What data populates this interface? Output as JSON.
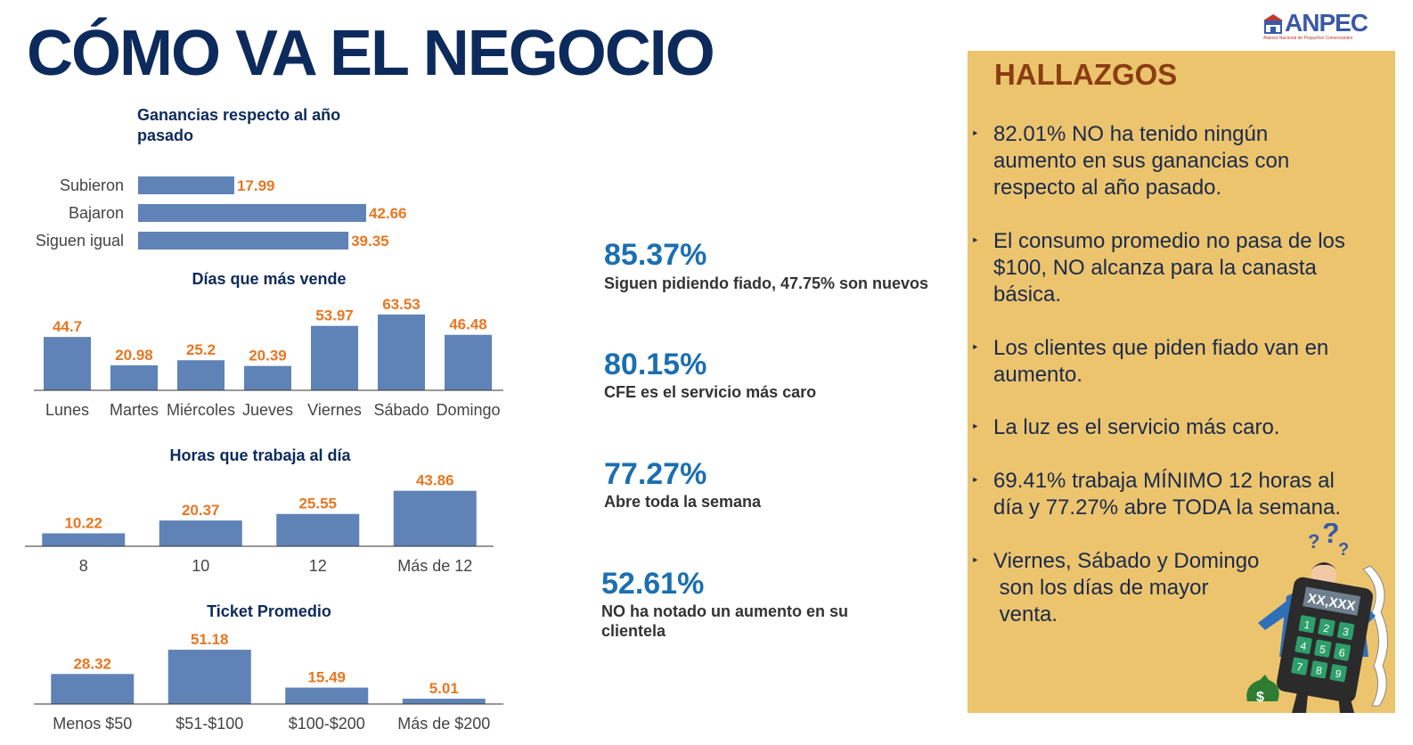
{
  "title": "CÓMO VA EL NEGOCIO",
  "logo": {
    "text": "ANPEC",
    "subtitle": "Alianza Nacional de Pequeños Comerciantes"
  },
  "colors": {
    "bar": "#5f83b6",
    "value_label": "#e87722",
    "title": "#0d2a5c",
    "stat": "#1c6fb0",
    "panel_bg": "#ecc46e",
    "panel_title": "#8b3d12"
  },
  "chart_data": [
    {
      "type": "bar",
      "orientation": "horizontal",
      "title_lines": [
        "Ganancias respecto al año",
        "pasado"
      ],
      "categories": [
        "Subieron",
        "Bajaron",
        "Siguen igual"
      ],
      "values": [
        17.99,
        42.66,
        39.35
      ],
      "value_labels": [
        "17.99",
        "42.66",
        "39.35"
      ]
    },
    {
      "type": "bar",
      "title": "Días que más vende",
      "categories": [
        "Lunes",
        "Martes",
        "Miércoles",
        "Jueves",
        "Viernes",
        "Sábado",
        "Domingo"
      ],
      "values": [
        44.7,
        20.98,
        25.2,
        20.39,
        53.97,
        63.53,
        46.48
      ],
      "value_labels": [
        "44.7",
        "20.98",
        "25.2",
        "20.39",
        "53.97",
        "63.53",
        "46.48"
      ]
    },
    {
      "type": "bar",
      "title": "Horas que trabaja al día",
      "categories": [
        "8",
        "10",
        "12",
        "Más de 12"
      ],
      "values": [
        10.22,
        20.37,
        25.55,
        43.86
      ],
      "value_labels": [
        "10.22",
        "20.37",
        "25.55",
        "43.86"
      ]
    },
    {
      "type": "bar",
      "title": "Ticket Promedio",
      "categories": [
        "Menos $50",
        "$51-$100",
        "$100-$200",
        "Más de $200"
      ],
      "values": [
        28.32,
        51.18,
        15.49,
        5.01
      ],
      "value_labels": [
        "28.32",
        "51.18",
        "15.49",
        "5.01"
      ]
    }
  ],
  "stats": [
    {
      "value": "85.37%",
      "label": "Siguen pidiendo fiado, 47.75% son nuevos"
    },
    {
      "value": "80.15%",
      "label": "CFE es el servicio más caro"
    },
    {
      "value": "77.27%",
      "label": "Abre toda la semana"
    },
    {
      "value": "52.61%",
      "label_lines": [
        "NO ha notado un aumento en su",
        "clientela"
      ]
    }
  ],
  "findings": {
    "title": "HALLAZGOS",
    "bullet": "‣",
    "items": [
      {
        "lines": [
          "82.01% NO ha tenido ningún",
          "aumento en sus ganancias con",
          "respecto al año pasado."
        ]
      },
      {
        "lines": [
          "El consumo promedio no pasa de los",
          "$100, NO alcanza para la canasta",
          "básica."
        ]
      },
      {
        "lines": [
          "Los clientes que piden fiado van en",
          "aumento."
        ]
      },
      {
        "lines": [
          "La luz es el servicio más caro."
        ]
      },
      {
        "lines": [
          "69.41% trabaja MÍNIMO 12 horas al",
          "día y 77.27% abre TODA la semana."
        ]
      },
      {
        "lines": [
          "Viernes, Sábado y Domingo",
          " son los días de mayor",
          " venta."
        ]
      }
    ]
  },
  "illustration": {
    "calculator_display": "XX,XXX",
    "keys": [
      "1",
      "2",
      "3",
      "4",
      "5",
      "6",
      "7",
      "8",
      "9"
    ]
  }
}
